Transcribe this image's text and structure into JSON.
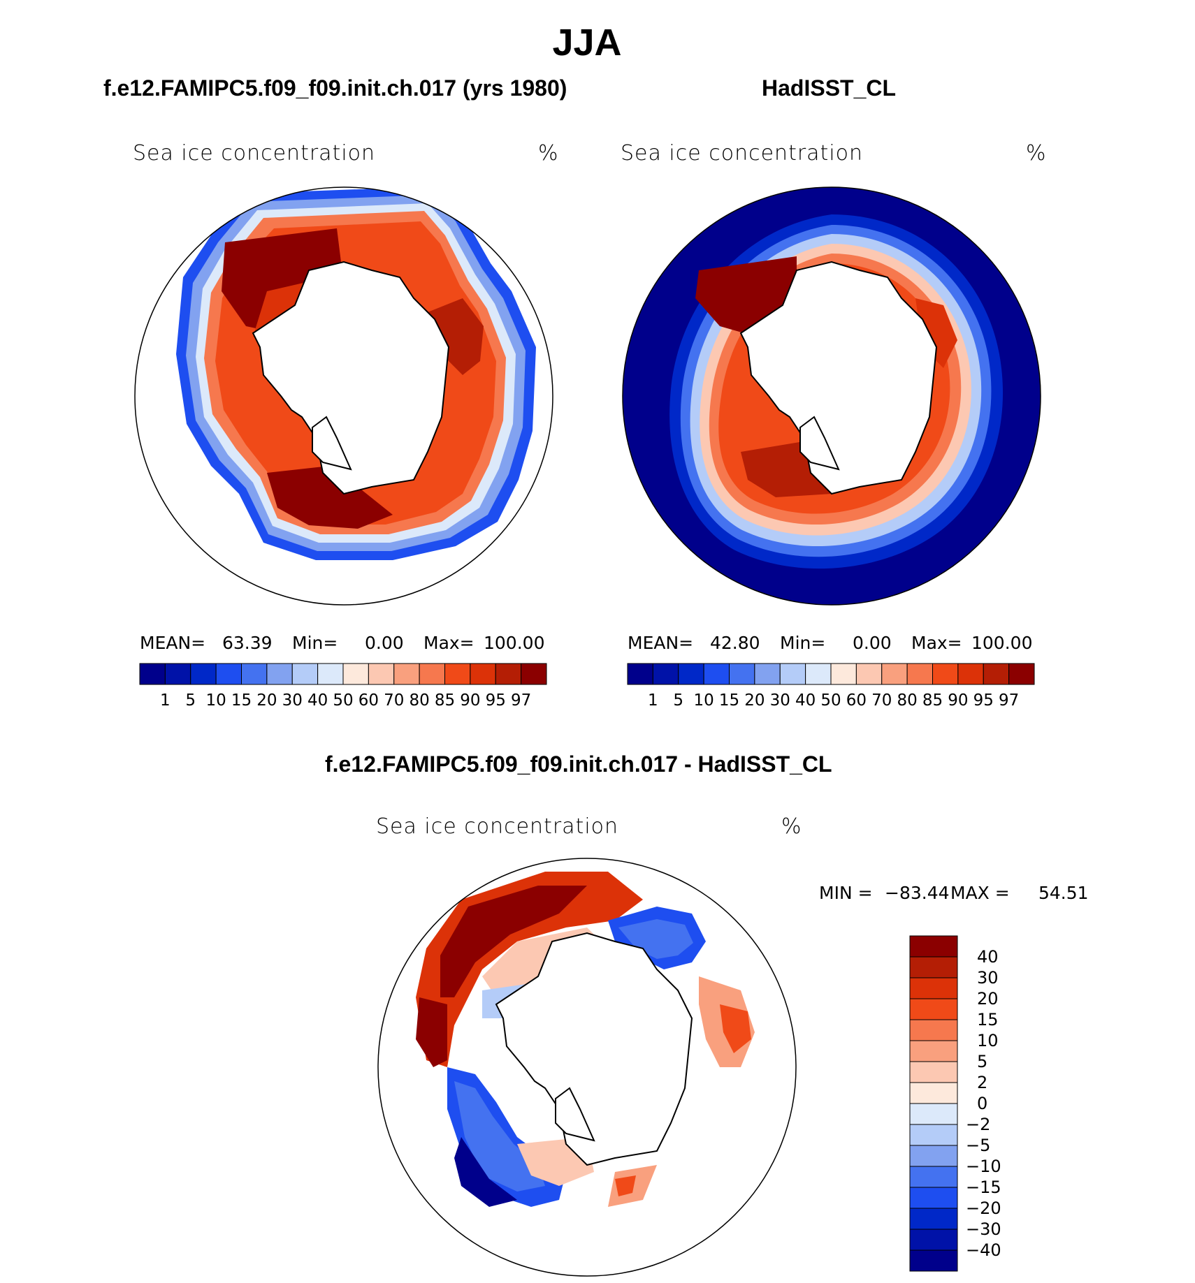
{
  "title": "JJA",
  "panels": [
    {
      "title": "f.e12.FAMIPC5.f09_f09.init.ch.017 (yrs 1980)",
      "variable": "Sea ice concentration",
      "units": "%",
      "stats": {
        "mean_label": "MEAN=",
        "mean": "63.39",
        "min_label": "Min=",
        "min": "0.00",
        "max_label": "Max=",
        "max": "100.00"
      }
    },
    {
      "title": "HadISST_CL",
      "variable": "Sea ice concentration",
      "units": "%",
      "stats": {
        "mean_label": "MEAN=",
        "mean": "42.80",
        "min_label": "Min=",
        "min": "0.00",
        "max_label": "Max=",
        "max": "100.00"
      }
    },
    {
      "title": "f.e12.FAMIPC5.f09_f09.init.ch.017 - HadISST_CL",
      "variable": "Sea ice concentration",
      "units": "%",
      "stats": {
        "min_label": "MIN =",
        "min": "−83.44",
        "max_label": "MAX =",
        "max": "54.51"
      }
    }
  ],
  "colorbar_abs": {
    "colors": [
      "#00008b",
      "#0012a8",
      "#0028c8",
      "#1e4ef0",
      "#4472f0",
      "#82a2f0",
      "#b4ccf8",
      "#dce9fa",
      "#fde9dc",
      "#fcc8b2",
      "#f9a07e",
      "#f6784e",
      "#f04a18",
      "#dc3208",
      "#b41e05",
      "#8b0000"
    ],
    "ticks": [
      "1",
      "5",
      "10",
      "15",
      "20",
      "30",
      "40",
      "50",
      "60",
      "70",
      "80",
      "85",
      "90",
      "95",
      "97"
    ]
  },
  "colorbar_diff": {
    "colors": [
      "#00008b",
      "#0012a8",
      "#0028c8",
      "#1e4ef0",
      "#4472f0",
      "#82a2f0",
      "#b4ccf8",
      "#dce9fa",
      "#fde9dc",
      "#fcc8b2",
      "#f9a07e",
      "#f6784e",
      "#f04a18",
      "#dc3208",
      "#b41e05",
      "#8b0000"
    ],
    "ticks": [
      "40",
      "30",
      "20",
      "15",
      "10",
      "5",
      "2",
      "0",
      "−2",
      "−5",
      "−10",
      "−15",
      "−20",
      "−30",
      "−40"
    ]
  }
}
